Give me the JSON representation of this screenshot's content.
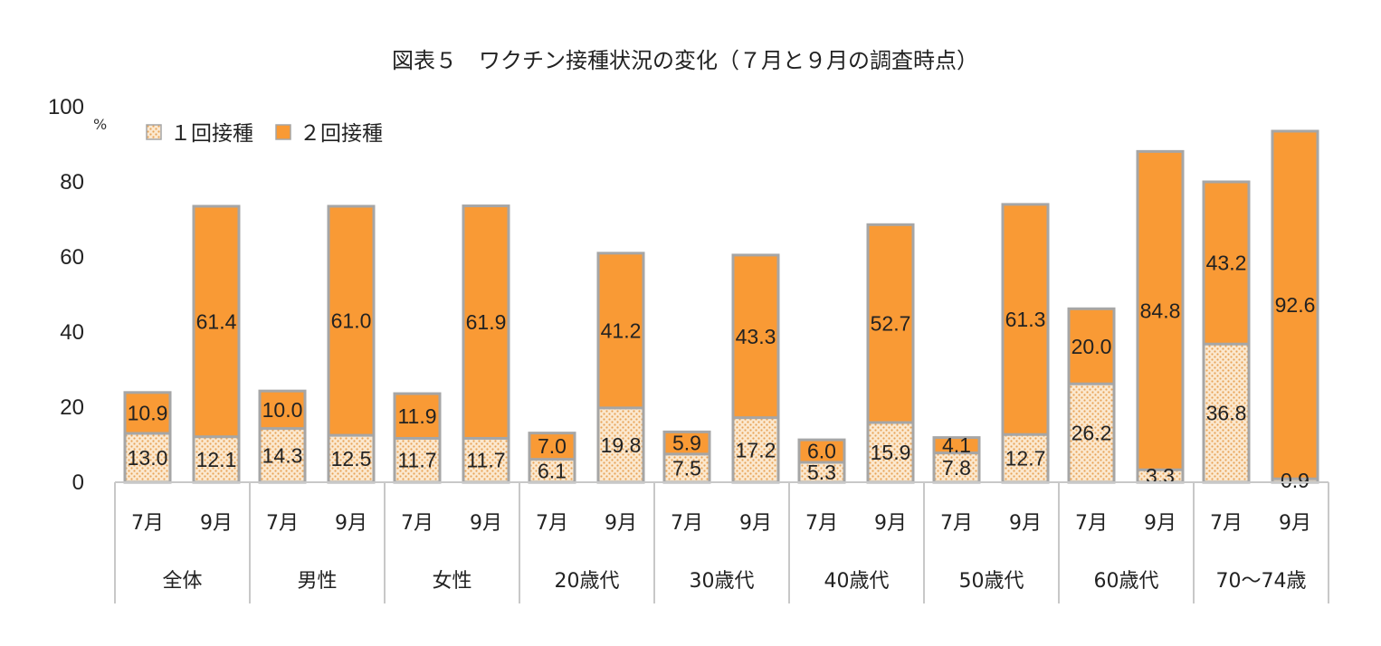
{
  "chart_data": {
    "type": "bar",
    "stacked": true,
    "title": "図表５　ワクチン接種状況の変化（７月と９月の調査時点）",
    "ylabel": "",
    "y_unit": "%",
    "ylim": [
      0,
      100
    ],
    "yticks": [
      "0",
      "20",
      "40",
      "60",
      "80",
      "100"
    ],
    "legend_placement": "top-left",
    "grid": false,
    "months": [
      "7月",
      "9月"
    ],
    "groups": [
      "全体",
      "男性",
      "女性",
      "20歳代",
      "30歳代",
      "40歳代",
      "50歳代",
      "60歳代",
      "70～74歳"
    ],
    "series": [
      {
        "name": "１回接種",
        "color": "#fbe8cf",
        "dot_color": "#e8a457",
        "values": [
          13.0,
          12.1,
          14.3,
          12.5,
          11.7,
          11.7,
          6.1,
          19.8,
          7.5,
          17.2,
          5.3,
          15.9,
          7.8,
          12.7,
          26.2,
          3.3,
          36.8,
          0.9
        ],
        "labels": [
          "13.0",
          "12.1",
          "14.3",
          "12.5",
          "11.7",
          "11.7",
          "6.1",
          "19.8",
          "7.5",
          "17.2",
          "5.3",
          "15.9",
          "7.8",
          "12.7",
          "26.2",
          "3.3",
          "36.8",
          "0.9"
        ]
      },
      {
        "name": "２回接種",
        "color": "#f99a35",
        "values": [
          10.9,
          61.4,
          10.0,
          61.0,
          11.9,
          61.9,
          7.0,
          41.2,
          5.9,
          43.3,
          6.0,
          52.7,
          4.1,
          61.3,
          20.0,
          84.8,
          43.2,
          92.6
        ],
        "labels": [
          "10.9",
          "61.4",
          "10.0",
          "61.0",
          "11.9",
          "61.9",
          "7.0",
          "41.2",
          "5.9",
          "43.3",
          "6.0",
          "52.7",
          "4.1",
          "61.3",
          "20.0",
          "84.8",
          "43.2",
          "92.6"
        ]
      }
    ]
  }
}
